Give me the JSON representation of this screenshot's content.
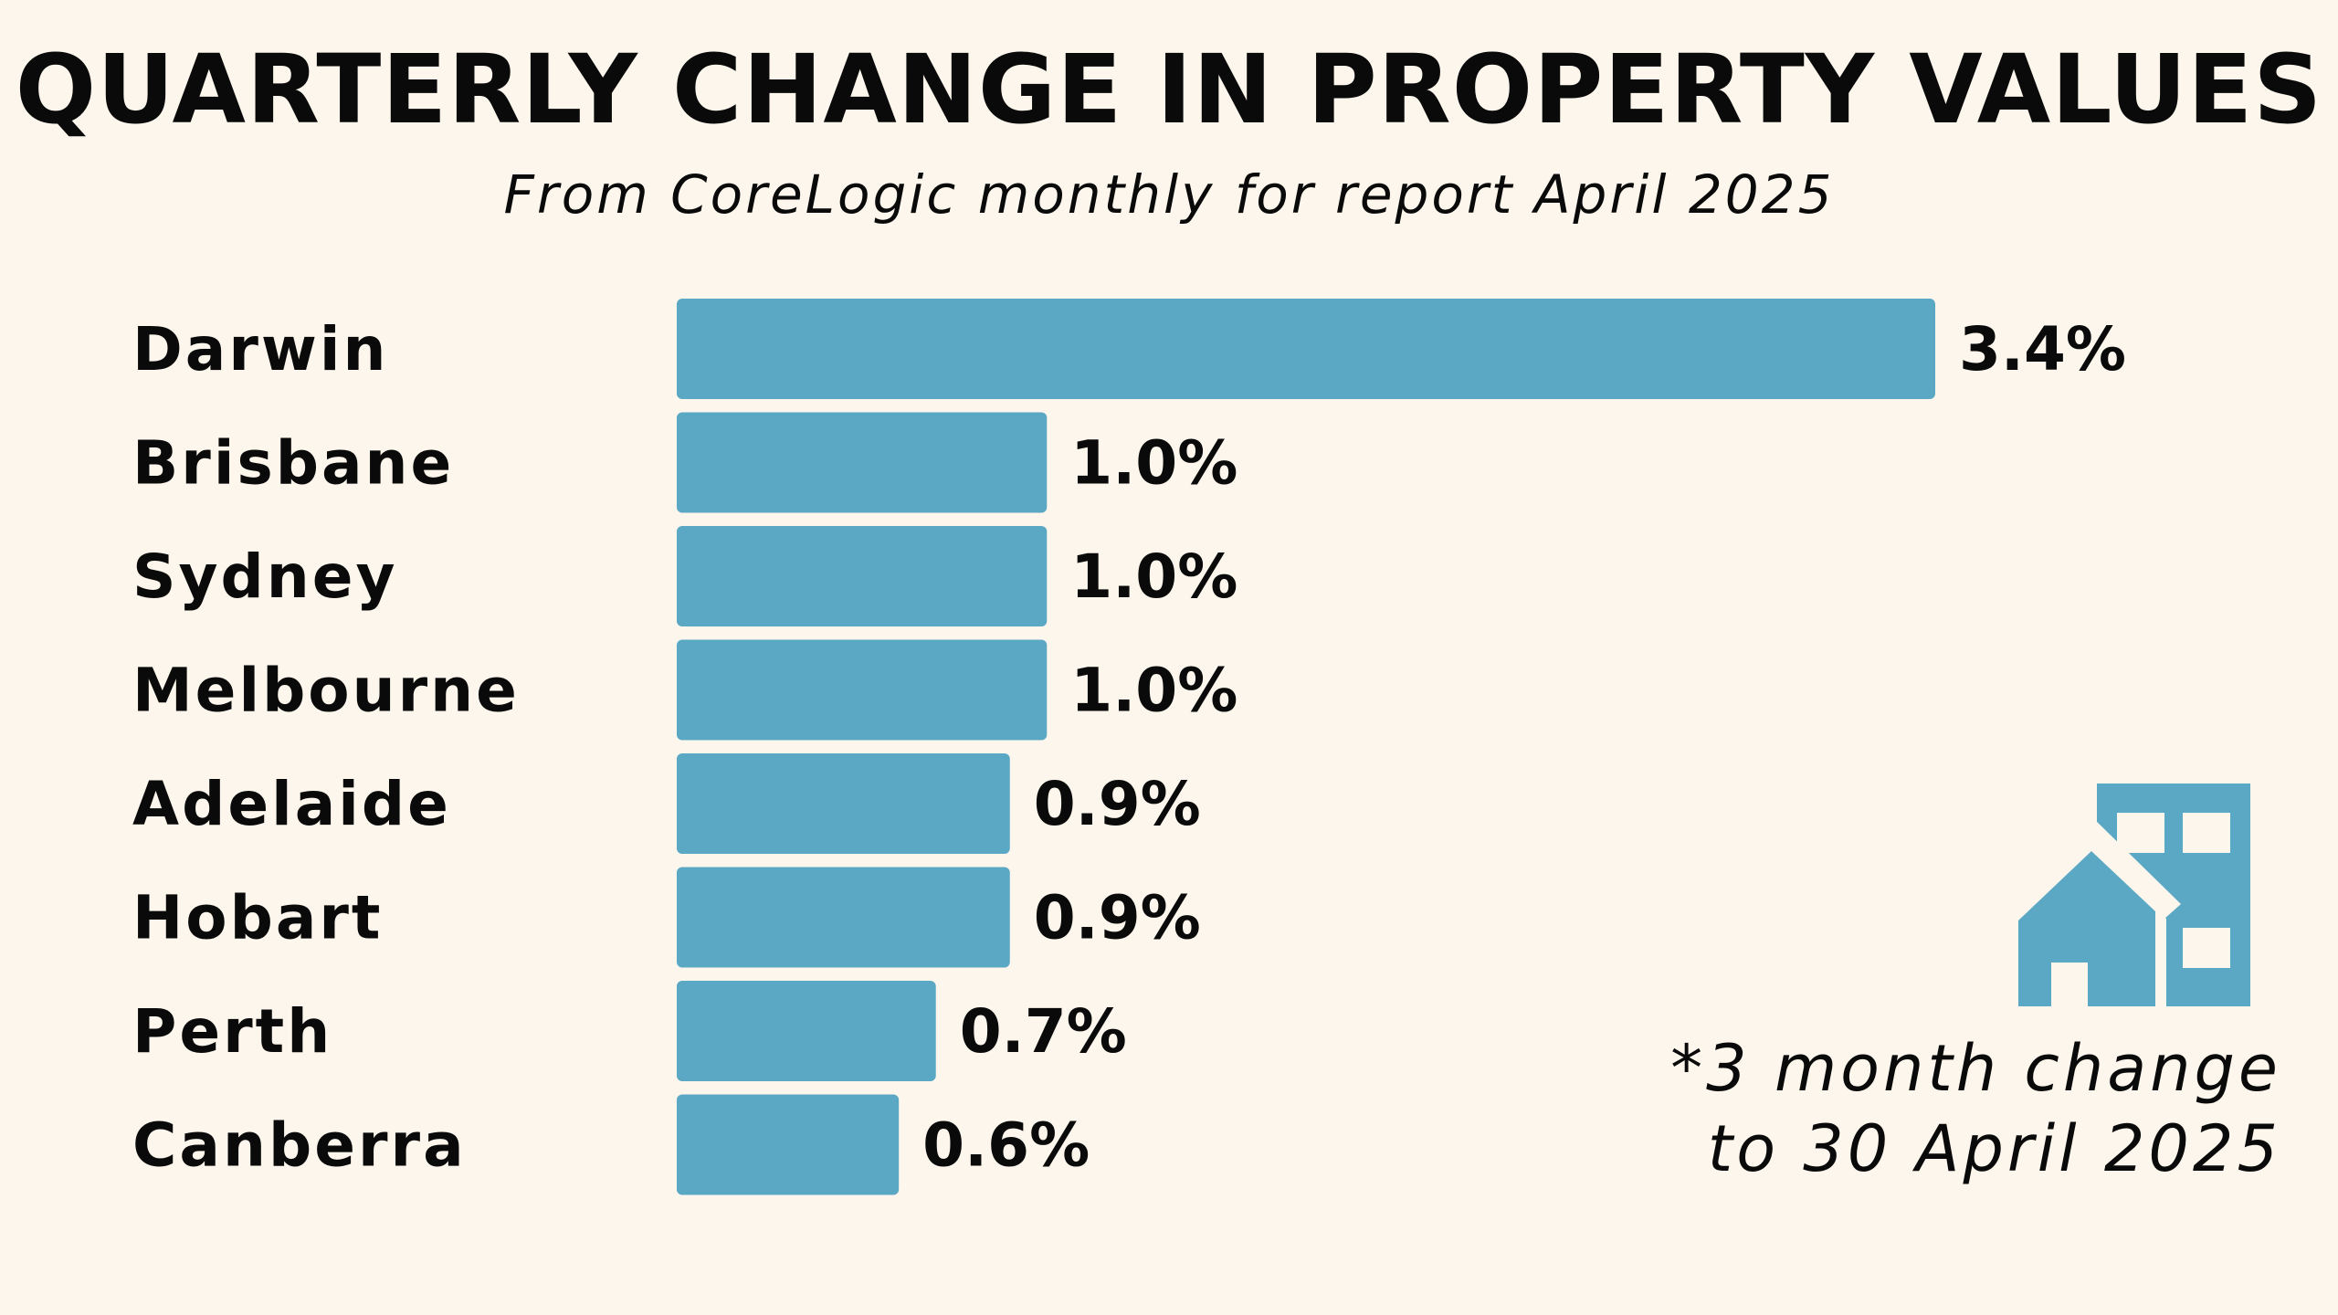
{
  "chart_data": {
    "type": "bar",
    "orientation": "horizontal",
    "title": "QUARTERLY CHANGE IN PROPERTY VALUES",
    "subtitle": "From CoreLogic monthly for report April 2025",
    "categories": [
      "Darwin",
      "Brisbane",
      "Sydney",
      "Melbourne",
      "Adelaide",
      "Hobart",
      "Perth",
      "Canberra"
    ],
    "values": [
      3.4,
      1.0,
      1.0,
      1.0,
      0.9,
      0.9,
      0.7,
      0.6
    ],
    "value_labels": [
      "3.4%",
      "1.0%",
      "1.0%",
      "1.0%",
      "0.9%",
      "0.9%",
      "0.7%",
      "0.6%"
    ],
    "xlim": [
      0,
      3.4
    ],
    "xlabel": "",
    "ylabel": "",
    "grid": false,
    "bar_color": "#5ba8c5"
  },
  "footnote": {
    "line1": "*3 month change",
    "line2": "to 30 April 2025"
  },
  "icon": {
    "name": "house-and-building-icon",
    "color": "#5ba8c5"
  },
  "colors": {
    "background": "#fcf6ec",
    "text": "#0a0a0a",
    "accent": "#5ba8c5"
  }
}
